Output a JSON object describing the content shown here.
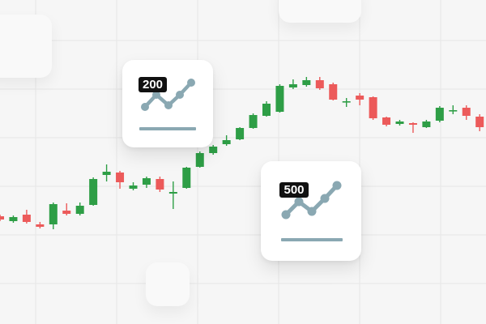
{
  "chart_data": {
    "type": "candlestick",
    "title": "",
    "xlabel": "",
    "ylabel": "",
    "grid": true,
    "colors": {
      "up": "#2e9e46",
      "down": "#ec5a5a",
      "grid": "#e6e6e6"
    },
    "candles": [
      {
        "o": 18,
        "c": 14,
        "h": 20,
        "l": 12
      },
      {
        "o": 12,
        "c": 17,
        "h": 19,
        "l": 10
      },
      {
        "o": 20,
        "c": 11,
        "h": 26,
        "l": 9
      },
      {
        "o": 8,
        "c": 5,
        "h": 11,
        "l": 3
      },
      {
        "o": 8,
        "c": 33,
        "h": 35,
        "l": 2
      },
      {
        "o": 25,
        "c": 21,
        "h": 34,
        "l": 19
      },
      {
        "o": 21,
        "c": 31,
        "h": 35,
        "l": 19
      },
      {
        "o": 32,
        "c": 64,
        "h": 66,
        "l": 31
      },
      {
        "o": 69,
        "c": 73,
        "h": 82,
        "l": 61
      },
      {
        "o": 72,
        "c": 60,
        "h": 74,
        "l": 52
      },
      {
        "o": 52,
        "c": 56,
        "h": 60,
        "l": 50
      },
      {
        "o": 57,
        "c": 65,
        "h": 67,
        "l": 53
      },
      {
        "o": 64,
        "c": 51,
        "h": 67,
        "l": 48
      },
      {
        "o": 46,
        "c": 48,
        "h": 61,
        "l": 27
      },
      {
        "o": 53,
        "c": 78,
        "h": 79,
        "l": 52
      },
      {
        "o": 79,
        "c": 96,
        "h": 98,
        "l": 78
      },
      {
        "o": 96,
        "c": 104,
        "h": 106,
        "l": 94
      },
      {
        "o": 107,
        "c": 112,
        "h": 118,
        "l": 105
      },
      {
        "o": 113,
        "c": 127,
        "h": 128,
        "l": 112
      },
      {
        "o": 127,
        "c": 143,
        "h": 145,
        "l": 126
      },
      {
        "o": 142,
        "c": 157,
        "h": 160,
        "l": 141
      },
      {
        "o": 147,
        "c": 179,
        "h": 181,
        "l": 146
      },
      {
        "o": 177,
        "c": 181,
        "h": 187,
        "l": 175
      },
      {
        "o": 180,
        "c": 186,
        "h": 190,
        "l": 178
      },
      {
        "o": 186,
        "c": 176,
        "h": 190,
        "l": 174
      },
      {
        "o": 181,
        "c": 162,
        "h": 183,
        "l": 161
      },
      {
        "o": 160,
        "c": 160,
        "h": 164,
        "l": 153
      },
      {
        "o": 167,
        "c": 162,
        "h": 170,
        "l": 155
      },
      {
        "o": 165,
        "c": 139,
        "h": 166,
        "l": 137
      },
      {
        "o": 140,
        "c": 131,
        "h": 141,
        "l": 129
      },
      {
        "o": 132,
        "c": 135,
        "h": 137,
        "l": 130
      },
      {
        "o": 133,
        "c": 131,
        "h": 134,
        "l": 121
      },
      {
        "o": 128,
        "c": 135,
        "h": 137,
        "l": 127
      },
      {
        "o": 136,
        "c": 152,
        "h": 154,
        "l": 134
      },
      {
        "o": 149,
        "c": 149,
        "h": 155,
        "l": 144
      },
      {
        "o": 152,
        "c": 142,
        "h": 155,
        "l": 137
      },
      {
        "o": 141,
        "c": 128,
        "h": 144,
        "l": 123
      },
      {
        "o": 130,
        "c": 130,
        "h": 136,
        "l": 119
      }
    ]
  },
  "cards": [
    {
      "badge": "200"
    },
    {
      "badge": "500"
    }
  ],
  "colors": {
    "icon": "#8aa8b2",
    "badge_bg": "#111111",
    "badge_text": "#ffffff"
  },
  "icons": [
    "trend-chart-icon",
    "trend-chart-icon"
  ]
}
